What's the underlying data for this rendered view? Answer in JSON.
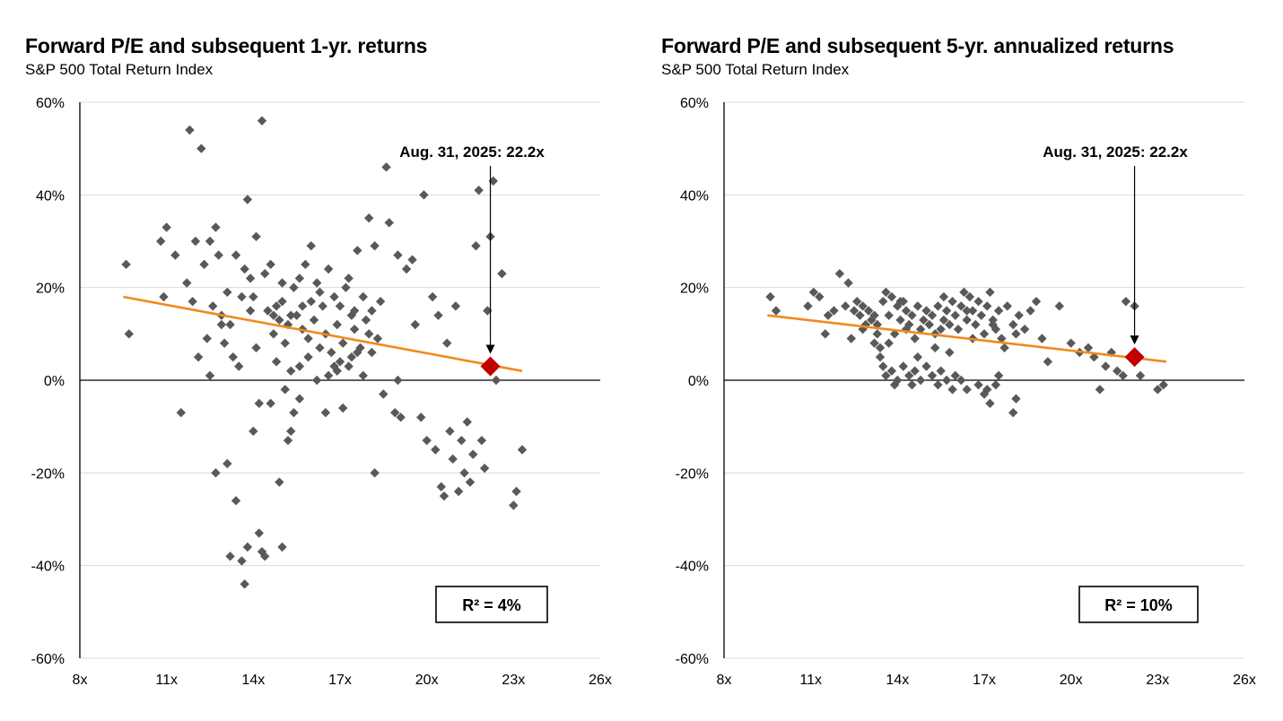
{
  "charts": [
    {
      "title": "Forward P/E and subsequent 1-yr. returns",
      "subtitle": "S&P 500 Total Return Index",
      "r2_label": "R²  = 4%",
      "annotation": "Aug. 31, 2025: 22.2x",
      "annotation_y": 45
    },
    {
      "title": "Forward P/E and subsequent 5-yr. annualized returns",
      "subtitle": "S&P 500 Total Return Index",
      "r2_label": "R²  = 10%",
      "annotation": "Aug. 31, 2025: 22.2x",
      "annotation_y": 50
    }
  ],
  "colors": {
    "points": "#595959",
    "trend": "#f08a1c",
    "highlight": "#c00000",
    "grid": "#d9d9d9",
    "axis": "#000000"
  },
  "chart_data": [
    {
      "type": "scatter",
      "title": "Forward P/E and subsequent 1-yr. returns",
      "subtitle": "S&P 500 Total Return Index",
      "xlim": [
        8,
        26
      ],
      "xticks": [
        8,
        11,
        14,
        17,
        20,
        23,
        26
      ],
      "xtick_labels": [
        "8x",
        "11x",
        "14x",
        "17x",
        "20x",
        "23x",
        "26x"
      ],
      "ylim": [
        -60,
        60
      ],
      "yticks": [
        -60,
        -40,
        -20,
        0,
        20,
        40,
        60
      ],
      "ytick_labels": [
        "-60%",
        "-40%",
        "-20%",
        "0%",
        "20%",
        "40%",
        "60%"
      ],
      "grid": true,
      "points": [
        [
          9.6,
          25
        ],
        [
          9.7,
          10
        ],
        [
          10.8,
          30
        ],
        [
          11.0,
          33
        ],
        [
          10.9,
          18
        ],
        [
          11.3,
          27
        ],
        [
          11.5,
          -7
        ],
        [
          11.7,
          21
        ],
        [
          11.8,
          54
        ],
        [
          11.9,
          17
        ],
        [
          12.0,
          30
        ],
        [
          12.2,
          50
        ],
        [
          12.3,
          25
        ],
        [
          12.4,
          9
        ],
        [
          12.5,
          30
        ],
        [
          12.6,
          16
        ],
        [
          12.7,
          33
        ],
        [
          12.8,
          27
        ],
        [
          12.9,
          14
        ],
        [
          13.0,
          8
        ],
        [
          13.1,
          19
        ],
        [
          13.3,
          5
        ],
        [
          13.4,
          27
        ],
        [
          13.5,
          3
        ],
        [
          13.7,
          24
        ],
        [
          13.8,
          39
        ],
        [
          13.9,
          22
        ],
        [
          14.0,
          18
        ],
        [
          14.1,
          31
        ],
        [
          14.3,
          56
        ],
        [
          14.4,
          23
        ],
        [
          14.5,
          15
        ],
        [
          14.6,
          25
        ],
        [
          14.7,
          10
        ],
        [
          14.8,
          16
        ],
        [
          14.9,
          13
        ],
        [
          15.0,
          17
        ],
        [
          15.1,
          8
        ],
        [
          15.2,
          12
        ],
        [
          15.3,
          14
        ],
        [
          15.4,
          20
        ],
        [
          15.5,
          14
        ],
        [
          15.6,
          22
        ],
        [
          15.7,
          11
        ],
        [
          15.8,
          25
        ],
        [
          15.9,
          9
        ],
        [
          16.0,
          17
        ],
        [
          16.1,
          13
        ],
        [
          16.2,
          21
        ],
        [
          16.3,
          7
        ],
        [
          16.4,
          16
        ],
        [
          16.5,
          10
        ],
        [
          16.6,
          24
        ],
        [
          16.7,
          6
        ],
        [
          16.8,
          18
        ],
        [
          16.9,
          12
        ],
        [
          17.0,
          16
        ],
        [
          17.1,
          8
        ],
        [
          17.2,
          20
        ],
        [
          17.3,
          3
        ],
        [
          17.4,
          14
        ],
        [
          17.5,
          11
        ],
        [
          17.6,
          28
        ],
        [
          17.7,
          7
        ],
        [
          17.8,
          18
        ],
        [
          17.9,
          13
        ],
        [
          18.0,
          35
        ],
        [
          18.1,
          6
        ],
        [
          18.2,
          29
        ],
        [
          18.4,
          17
        ],
        [
          18.5,
          -3
        ],
        [
          18.6,
          46
        ],
        [
          18.7,
          34
        ],
        [
          18.9,
          -7
        ],
        [
          19.0,
          27
        ],
        [
          19.1,
          -8
        ],
        [
          19.3,
          24
        ],
        [
          19.5,
          26
        ],
        [
          19.6,
          12
        ],
        [
          19.8,
          -8
        ],
        [
          19.9,
          40
        ],
        [
          20.0,
          -13
        ],
        [
          20.2,
          18
        ],
        [
          20.3,
          -15
        ],
        [
          20.4,
          14
        ],
        [
          20.5,
          -23
        ],
        [
          20.6,
          -25
        ],
        [
          20.7,
          8
        ],
        [
          20.8,
          -11
        ],
        [
          20.9,
          -17
        ],
        [
          21.0,
          16
        ],
        [
          21.1,
          -24
        ],
        [
          21.2,
          -13
        ],
        [
          21.3,
          -20
        ],
        [
          21.4,
          -9
        ],
        [
          21.5,
          -22
        ],
        [
          21.6,
          -16
        ],
        [
          21.7,
          29
        ],
        [
          21.8,
          41
        ],
        [
          21.9,
          -13
        ],
        [
          22.0,
          -19
        ],
        [
          22.1,
          15
        ],
        [
          22.2,
          31
        ],
        [
          22.3,
          43
        ],
        [
          22.4,
          0
        ],
        [
          22.6,
          23
        ],
        [
          23.0,
          -27
        ],
        [
          23.1,
          -24
        ],
        [
          23.3,
          -15
        ],
        [
          12.5,
          1
        ],
        [
          12.7,
          -20
        ],
        [
          13.1,
          -18
        ],
        [
          13.2,
          -38
        ],
        [
          13.4,
          -26
        ],
        [
          13.6,
          -39
        ],
        [
          13.7,
          -44
        ],
        [
          13.8,
          -36
        ],
        [
          14.0,
          -11
        ],
        [
          14.2,
          -33
        ],
        [
          14.3,
          -37
        ],
        [
          14.4,
          -38
        ],
        [
          14.6,
          -5
        ],
        [
          14.9,
          -22
        ],
        [
          15.0,
          -36
        ],
        [
          15.1,
          -2
        ],
        [
          15.2,
          -13
        ],
        [
          15.3,
          -11
        ],
        [
          15.4,
          -7
        ],
        [
          15.6,
          -4
        ],
        [
          16.5,
          -7
        ],
        [
          17.1,
          -6
        ],
        [
          18.2,
          -20
        ],
        [
          15.6,
          3
        ],
        [
          16.2,
          0
        ],
        [
          16.9,
          2
        ],
        [
          17.4,
          5
        ],
        [
          17.8,
          1
        ],
        [
          18.3,
          9
        ],
        [
          19.0,
          0
        ],
        [
          13.2,
          12
        ],
        [
          13.6,
          18
        ],
        [
          14.1,
          7
        ],
        [
          14.8,
          4
        ],
        [
          15.3,
          2
        ],
        [
          15.9,
          5
        ],
        [
          16.6,
          1
        ],
        [
          17.0,
          4
        ],
        [
          17.6,
          6
        ],
        [
          18.0,
          10
        ],
        [
          14.2,
          -5
        ],
        [
          15.7,
          16
        ],
        [
          16.3,
          19
        ],
        [
          16.8,
          3
        ],
        [
          17.5,
          15
        ],
        [
          12.1,
          5
        ],
        [
          12.9,
          12
        ],
        [
          15.0,
          21
        ],
        [
          16.0,
          29
        ],
        [
          17.3,
          22
        ],
        [
          18.1,
          15
        ],
        [
          13.9,
          15
        ],
        [
          14.7,
          14
        ]
      ],
      "trend": {
        "x": [
          9.5,
          23.3
        ],
        "y": [
          18,
          2
        ]
      },
      "highlight": {
        "x": 22.2,
        "y": 3,
        "label": "Aug. 31, 2025: 22.2x"
      },
      "r2": "R²  = 4%"
    },
    {
      "type": "scatter",
      "title": "Forward P/E and subsequent 5-yr. annualized returns",
      "subtitle": "S&P 500 Total Return Index",
      "xlim": [
        8,
        26
      ],
      "xticks": [
        8,
        11,
        14,
        17,
        20,
        23,
        26
      ],
      "xtick_labels": [
        "8x",
        "11x",
        "14x",
        "17x",
        "20x",
        "23x",
        "26x"
      ],
      "ylim": [
        -60,
        60
      ],
      "yticks": [
        -60,
        -40,
        -20,
        0,
        20,
        40,
        60
      ],
      "ytick_labels": [
        "-60%",
        "-40%",
        "-20%",
        "0%",
        "20%",
        "40%",
        "60%"
      ],
      "grid": true,
      "points": [
        [
          9.6,
          18
        ],
        [
          9.8,
          15
        ],
        [
          10.9,
          16
        ],
        [
          11.1,
          19
        ],
        [
          11.3,
          18
        ],
        [
          11.5,
          10
        ],
        [
          11.6,
          14
        ],
        [
          11.8,
          15
        ],
        [
          12.0,
          23
        ],
        [
          12.2,
          16
        ],
        [
          12.3,
          21
        ],
        [
          12.4,
          9
        ],
        [
          12.5,
          15
        ],
        [
          12.6,
          17
        ],
        [
          12.7,
          14
        ],
        [
          12.8,
          16
        ],
        [
          12.9,
          12
        ],
        [
          13.0,
          15
        ],
        [
          13.1,
          13
        ],
        [
          13.2,
          8
        ],
        [
          13.3,
          12
        ],
        [
          13.4,
          7
        ],
        [
          13.5,
          17
        ],
        [
          13.6,
          19
        ],
        [
          13.7,
          14
        ],
        [
          13.8,
          18
        ],
        [
          13.9,
          10
        ],
        [
          14.0,
          16
        ],
        [
          14.1,
          13
        ],
        [
          14.2,
          17
        ],
        [
          14.3,
          15
        ],
        [
          14.4,
          12
        ],
        [
          14.5,
          14
        ],
        [
          14.6,
          9
        ],
        [
          14.7,
          16
        ],
        [
          14.8,
          11
        ],
        [
          14.9,
          13
        ],
        [
          15.0,
          15
        ],
        [
          15.1,
          12
        ],
        [
          15.2,
          14
        ],
        [
          15.3,
          10
        ],
        [
          15.4,
          16
        ],
        [
          15.5,
          11
        ],
        [
          15.6,
          13
        ],
        [
          15.7,
          15
        ],
        [
          15.8,
          12
        ],
        [
          15.9,
          17
        ],
        [
          16.0,
          14
        ],
        [
          16.1,
          11
        ],
        [
          16.2,
          16
        ],
        [
          16.3,
          19
        ],
        [
          16.4,
          13
        ],
        [
          16.5,
          18
        ],
        [
          16.6,
          15
        ],
        [
          16.7,
          12
        ],
        [
          16.8,
          17
        ],
        [
          16.9,
          14
        ],
        [
          17.0,
          10
        ],
        [
          17.1,
          16
        ],
        [
          17.2,
          19
        ],
        [
          17.3,
          13
        ],
        [
          17.4,
          11
        ],
        [
          17.5,
          15
        ],
        [
          17.6,
          9
        ],
        [
          17.8,
          16
        ],
        [
          18.0,
          12
        ],
        [
          18.2,
          14
        ],
        [
          18.4,
          11
        ],
        [
          18.6,
          15
        ],
        [
          18.8,
          17
        ],
        [
          19.0,
          9
        ],
        [
          19.2,
          4
        ],
        [
          19.6,
          16
        ],
        [
          20.0,
          8
        ],
        [
          20.3,
          6
        ],
        [
          20.6,
          7
        ],
        [
          20.8,
          5
        ],
        [
          21.0,
          -2
        ],
        [
          21.2,
          3
        ],
        [
          21.4,
          6
        ],
        [
          21.6,
          2
        ],
        [
          21.8,
          1
        ],
        [
          21.9,
          17
        ],
        [
          22.2,
          16
        ],
        [
          22.4,
          1
        ],
        [
          23.0,
          -2
        ],
        [
          23.2,
          -1
        ],
        [
          13.4,
          5
        ],
        [
          13.5,
          3
        ],
        [
          13.6,
          1
        ],
        [
          13.8,
          2
        ],
        [
          13.9,
          -1
        ],
        [
          14.0,
          0
        ],
        [
          14.2,
          3
        ],
        [
          14.4,
          1
        ],
        [
          14.5,
          -1
        ],
        [
          14.6,
          2
        ],
        [
          14.8,
          0
        ],
        [
          15.0,
          3
        ],
        [
          15.2,
          1
        ],
        [
          15.4,
          -1
        ],
        [
          15.5,
          2
        ],
        [
          15.7,
          0
        ],
        [
          15.9,
          -2
        ],
        [
          16.0,
          1
        ],
        [
          16.2,
          0
        ],
        [
          16.4,
          -2
        ],
        [
          16.8,
          -1
        ],
        [
          17.0,
          -3
        ],
        [
          17.1,
          -2
        ],
        [
          17.2,
          -5
        ],
        [
          17.4,
          -1
        ],
        [
          17.5,
          1
        ],
        [
          18.0,
          -7
        ],
        [
          18.1,
          -4
        ],
        [
          13.3,
          10
        ],
        [
          13.7,
          8
        ],
        [
          14.3,
          11
        ],
        [
          14.7,
          5
        ],
        [
          15.3,
          7
        ],
        [
          15.8,
          6
        ],
        [
          16.6,
          9
        ],
        [
          17.7,
          7
        ],
        [
          18.1,
          10
        ],
        [
          12.8,
          11
        ],
        [
          13.2,
          14
        ],
        [
          14.1,
          17
        ],
        [
          15.6,
          18
        ],
        [
          16.4,
          15
        ],
        [
          17.3,
          12
        ]
      ],
      "trend": {
        "x": [
          9.5,
          23.3
        ],
        "y": [
          14,
          4
        ]
      },
      "highlight": {
        "x": 22.2,
        "y": 5,
        "label": "Aug. 31, 2025: 22.2x"
      },
      "r2": "R²  = 10%"
    }
  ]
}
